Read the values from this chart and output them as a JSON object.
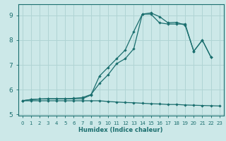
{
  "xlabel": "Humidex (Indice chaleur)",
  "bg_color": "#cce8e8",
  "grid_color": "#b0d4d4",
  "line_color": "#1a6e6e",
  "xlim": [
    -0.5,
    23.5
  ],
  "ylim": [
    4.95,
    9.45
  ],
  "xticks": [
    0,
    1,
    2,
    3,
    4,
    5,
    6,
    7,
    8,
    9,
    10,
    11,
    12,
    13,
    14,
    15,
    16,
    17,
    18,
    19,
    20,
    21,
    22,
    23
  ],
  "yticks": [
    5,
    6,
    7,
    8,
    9
  ],
  "line1_x": [
    0,
    1,
    2,
    3,
    4,
    5,
    6,
    7,
    8,
    9,
    10,
    11,
    12,
    13,
    14,
    15,
    16,
    17,
    18,
    19,
    20,
    21,
    22,
    23
  ],
  "line1_y": [
    5.55,
    5.55,
    5.55,
    5.55,
    5.55,
    5.55,
    5.55,
    5.55,
    5.55,
    5.55,
    5.52,
    5.5,
    5.48,
    5.47,
    5.45,
    5.43,
    5.42,
    5.4,
    5.4,
    5.38,
    5.37,
    5.36,
    5.35,
    5.34
  ],
  "line2_x": [
    0,
    1,
    2,
    3,
    4,
    5,
    6,
    7,
    8,
    9,
    10,
    11,
    12,
    13,
    14,
    15,
    16,
    17,
    18,
    19,
    20,
    21,
    22
  ],
  "line2_y": [
    5.55,
    5.6,
    5.62,
    5.63,
    5.63,
    5.63,
    5.65,
    5.68,
    5.8,
    6.25,
    6.6,
    7.05,
    7.25,
    7.65,
    9.05,
    9.1,
    8.95,
    8.7,
    8.72,
    8.6,
    7.55,
    8.0,
    7.32
  ],
  "line3_x": [
    0,
    1,
    2,
    3,
    4,
    5,
    6,
    7,
    8,
    9,
    10,
    11,
    12,
    13,
    14,
    15,
    16,
    17,
    18,
    19,
    20,
    21,
    22
  ],
  "line3_y": [
    5.55,
    5.6,
    5.62,
    5.63,
    5.63,
    5.63,
    5.63,
    5.63,
    5.78,
    6.55,
    6.9,
    7.25,
    7.6,
    8.35,
    9.05,
    9.05,
    8.7,
    8.65,
    8.65,
    8.65,
    7.55,
    8.0,
    7.32
  ]
}
